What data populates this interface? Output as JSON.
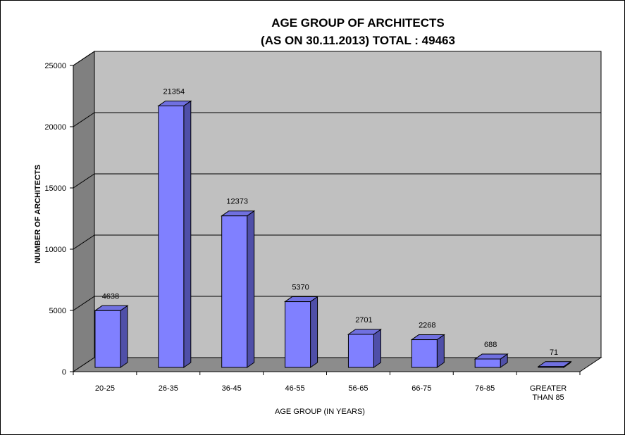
{
  "chart_data": {
    "type": "bar",
    "title": "AGE GROUP OF ARCHITECTS",
    "subtitle": "(AS ON 30.11.2013) TOTAL : 49463",
    "xlabel": "AGE GROUP  (IN YEARS)",
    "ylabel": "NUMBER OF ARCHITECTS",
    "ylim": [
      0,
      25000
    ],
    "yticks": [
      0,
      5000,
      10000,
      15000,
      20000,
      25000
    ],
    "categories": [
      [
        "20-25"
      ],
      [
        "26-35"
      ],
      [
        "36-45"
      ],
      [
        "46-55"
      ],
      [
        "56-65"
      ],
      [
        "66-75"
      ],
      [
        "76-85"
      ],
      [
        "GREATER",
        "THAN 85"
      ]
    ],
    "values": [
      4638,
      21354,
      12373,
      5370,
      2701,
      2268,
      688,
      71
    ],
    "data_labels": [
      "4638",
      "21354",
      "12373",
      "5370",
      "2701",
      "2268",
      "688",
      "71"
    ],
    "grid": true,
    "style": "3d-column",
    "colors": {
      "bar_front": "#8080ff",
      "bar_top": "#7070e0",
      "bar_side": "#4f4fa8",
      "back_wall": "#c0c0c0",
      "side_wall": "#808080",
      "floor": "#8c8c8c"
    }
  }
}
